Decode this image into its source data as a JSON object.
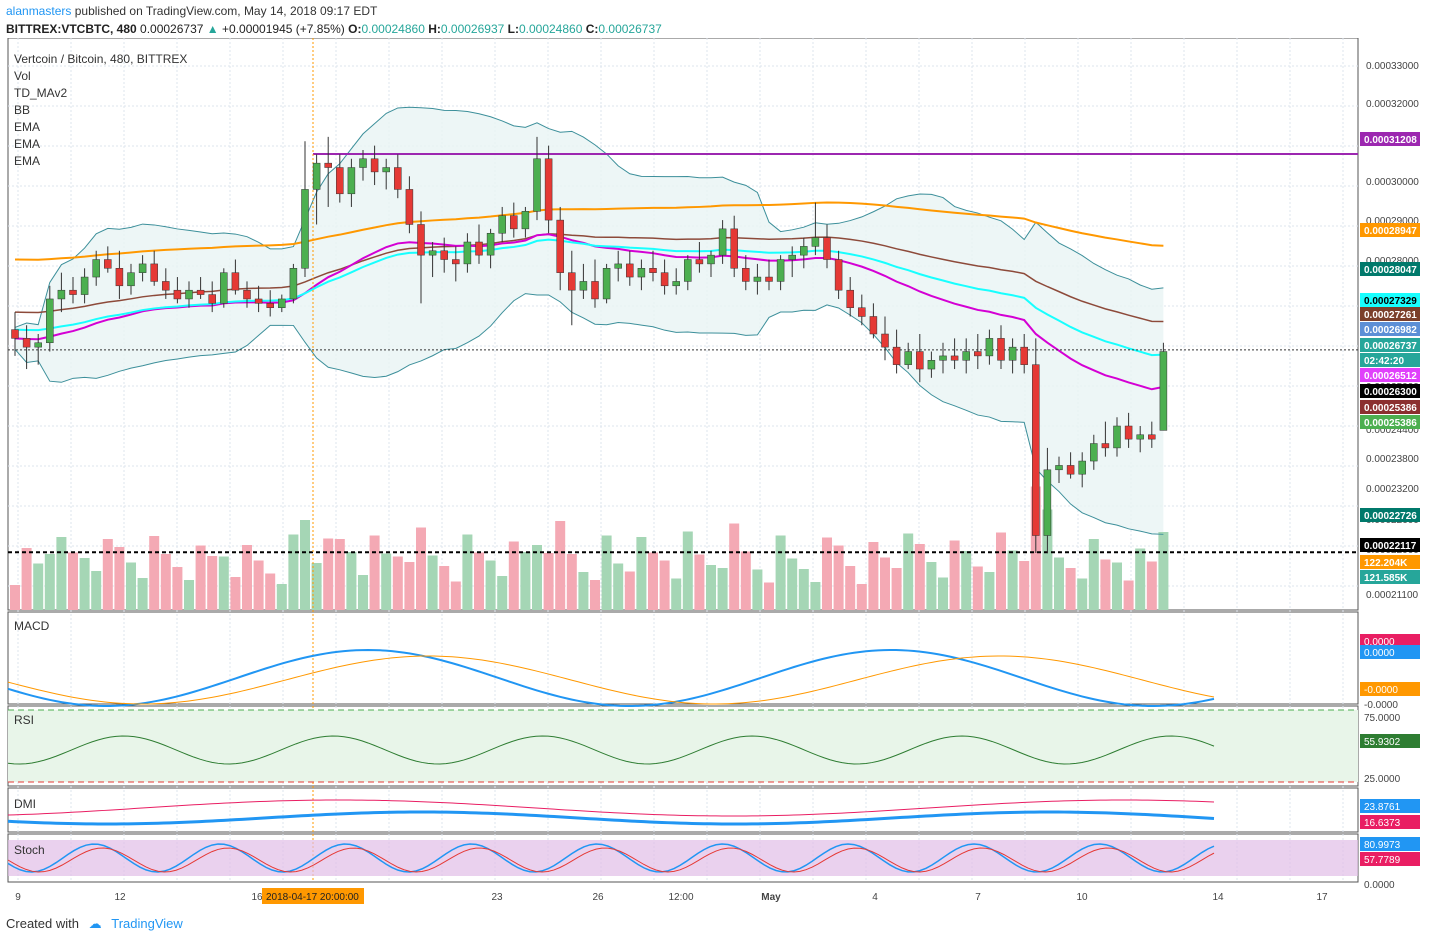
{
  "header": {
    "user": "alanmasters",
    "published": "published on TradingView.com, May 14, 2018 09:17 EDT",
    "symbol": "BITTREX:VTCBTC, 480",
    "last": "0.00026737",
    "change": "+0.00001945 (+7.85%)",
    "o_label": "O:",
    "o": "0.00024860",
    "h_label": "H:",
    "h": "0.00026937",
    "l_label": "L:",
    "l": "0.00024860",
    "c_label": "C:",
    "c": "0.00026737"
  },
  "legend": {
    "title": "Vertcoin / Bitcoin, 480, BITTREX",
    "items": [
      "Vol",
      "TD_MAv2",
      "BB",
      "EMA",
      "EMA",
      "EMA"
    ]
  },
  "panes": {
    "macd": "MACD",
    "rsi": "RSI",
    "dmi": "DMI",
    "stoch": "Stoch"
  },
  "chart_data": {
    "type": "candlestick",
    "price_ticks": [
      "0.00033000",
      "0.00032000",
      "0.00031000",
      "0.00030000",
      "0.00029000",
      "0.00028000",
      "0.00027000",
      "0.00026000",
      "0.00025000",
      "0.00024400",
      "0.00023800",
      "0.00023200",
      "0.00022600",
      "0.00022000",
      "0.00021100"
    ],
    "price_badges": [
      {
        "label": "0.00031208",
        "color": "#9c27b0",
        "text": "#ffffff"
      },
      {
        "label": "0.00028947",
        "color": "#ff9800",
        "text": "#ffffff"
      },
      {
        "label": "0.00028047",
        "color": "#00796b",
        "text": "#ffffff"
      },
      {
        "label": "0.00027329",
        "color": "#18ffff",
        "text": "#000000"
      },
      {
        "label": "0.00027261",
        "color": "#7b3f2b",
        "text": "#ffffff"
      },
      {
        "label": "0.00026982",
        "color": "#5c8fd6",
        "text": "#ffffff"
      },
      {
        "label": "0.00026737",
        "color": "#26a69a",
        "text": "#ffffff"
      },
      {
        "label": "02:42:20",
        "color": "#26a69a",
        "text": "#ffffff"
      },
      {
        "label": "0.00026512",
        "color": "#e040fb",
        "text": "#ffffff"
      },
      {
        "label": "0.00026300",
        "color": "#000000",
        "text": "#ffffff"
      },
      {
        "label": "0.00025386",
        "color": "#8b2f2f",
        "text": "#ffffff"
      },
      {
        "label": "0.00025386",
        "color": "#4caf50",
        "text": "#ffffff"
      },
      {
        "label": "0.00022726",
        "color": "#00796b",
        "text": "#ffffff"
      },
      {
        "label": "0.00022117",
        "color": "#000000",
        "text": "#ffffff"
      },
      {
        "label": "122.204K",
        "color": "#ff9800",
        "text": "#ffffff"
      },
      {
        "label": "121.585K",
        "color": "#26a69a",
        "text": "#ffffff"
      }
    ],
    "x_labels": [
      "9",
      "12",
      "16",
      "2018-04-17 20:00:00",
      "23",
      "26",
      "12:00",
      "May",
      "4",
      "7",
      "10",
      "14",
      "17"
    ],
    "macd": {
      "labels": [
        "0.0000",
        "0.0000",
        "-0.0000",
        "-0.0000"
      ],
      "badge_colors": [
        "#e91e63",
        "#2196f3",
        "#ff9800"
      ]
    },
    "rsi": {
      "labels": [
        "75.0000",
        "55.9302",
        "25.0000"
      ],
      "value": 55.9302
    },
    "dmi": {
      "labels": [
        "23.8761",
        "16.6373"
      ],
      "badge_colors": [
        "#2196f3",
        "#e91e63"
      ]
    },
    "stoch": {
      "labels": [
        "80.9973",
        "57.7789",
        "0.0000"
      ],
      "badge_colors": [
        "#2196f3",
        "#e91e63"
      ]
    },
    "candles": [
      [
        0.000272,
        0.000276,
        0.000266,
        0.00027
      ],
      [
        0.00027,
        0.000273,
        0.000263,
        0.000268
      ],
      [
        0.000268,
        0.000271,
        0.000264,
        0.000269
      ],
      [
        0.000269,
        0.000282,
        0.000267,
        0.000279
      ],
      [
        0.000279,
        0.000285,
        0.000276,
        0.000281
      ],
      [
        0.000281,
        0.000284,
        0.000278,
        0.00028
      ],
      [
        0.00028,
        0.000286,
        0.000278,
        0.000284
      ],
      [
        0.000284,
        0.00029,
        0.000282,
        0.000288
      ],
      [
        0.000288,
        0.000291,
        0.000285,
        0.000286
      ],
      [
        0.000286,
        0.00029,
        0.000279,
        0.000282
      ],
      [
        0.000282,
        0.000287,
        0.00028,
        0.000285
      ],
      [
        0.000285,
        0.000289,
        0.000283,
        0.000287
      ],
      [
        0.000287,
        0.00029,
        0.000282,
        0.000283
      ],
      [
        0.000283,
        0.000286,
        0.000279,
        0.000281
      ],
      [
        0.000281,
        0.000284,
        0.000278,
        0.000279
      ],
      [
        0.000279,
        0.000283,
        0.000277,
        0.000281
      ],
      [
        0.000281,
        0.000284,
        0.000279,
        0.00028
      ],
      [
        0.00028,
        0.000283,
        0.000276,
        0.000278
      ],
      [
        0.000278,
        0.000286,
        0.000277,
        0.000285
      ],
      [
        0.000285,
        0.000288,
        0.00028,
        0.000281
      ],
      [
        0.000281,
        0.000283,
        0.000277,
        0.000279
      ],
      [
        0.000279,
        0.000282,
        0.000276,
        0.000278
      ],
      [
        0.000278,
        0.000281,
        0.000275,
        0.000277
      ],
      [
        0.000277,
        0.00028,
        0.000276,
        0.000279
      ],
      [
        0.000279,
        0.000287,
        0.000278,
        0.000286
      ],
      [
        0.000286,
        0.000315,
        0.000284,
        0.000304
      ],
      [
        0.000304,
        0.000312,
        0.000296,
        0.00031
      ],
      [
        0.00031,
        0.000316,
        0.0003,
        0.000309
      ],
      [
        0.000309,
        0.000312,
        0.000301,
        0.000303
      ],
      [
        0.000303,
        0.000311,
        0.0003,
        0.000309
      ],
      [
        0.000309,
        0.000313,
        0.000306,
        0.000311
      ],
      [
        0.000311,
        0.000314,
        0.000305,
        0.000308
      ],
      [
        0.000308,
        0.000311,
        0.000304,
        0.000309
      ],
      [
        0.000309,
        0.000312,
        0.000302,
        0.000304
      ],
      [
        0.000304,
        0.000307,
        0.000294,
        0.000296
      ],
      [
        0.000296,
        0.000299,
        0.000278,
        0.000289
      ],
      [
        0.000289,
        0.000292,
        0.000284,
        0.00029
      ],
      [
        0.00029,
        0.000293,
        0.000285,
        0.000288
      ],
      [
        0.000288,
        0.000291,
        0.000283,
        0.000287
      ],
      [
        0.000287,
        0.000294,
        0.000285,
        0.000292
      ],
      [
        0.000292,
        0.000296,
        0.000287,
        0.000289
      ],
      [
        0.000289,
        0.000295,
        0.000286,
        0.000294
      ],
      [
        0.000294,
        0.0003,
        0.000292,
        0.000298
      ],
      [
        0.000298,
        0.000301,
        0.000293,
        0.000295
      ],
      [
        0.000295,
        0.0003,
        0.000293,
        0.000299
      ],
      [
        0.000299,
        0.000316,
        0.000297,
        0.000311
      ],
      [
        0.000311,
        0.000314,
        0.000294,
        0.000297
      ],
      [
        0.000297,
        0.0003,
        0.000281,
        0.000285
      ],
      [
        0.000285,
        0.00029,
        0.000273,
        0.000281
      ],
      [
        0.000281,
        0.000287,
        0.000279,
        0.000283
      ],
      [
        0.000283,
        0.000288,
        0.000277,
        0.000279
      ],
      [
        0.000279,
        0.000287,
        0.000278,
        0.000286
      ],
      [
        0.000286,
        0.00029,
        0.000283,
        0.000287
      ],
      [
        0.000287,
        0.00029,
        0.000282,
        0.000284
      ],
      [
        0.000284,
        0.000288,
        0.000281,
        0.000286
      ],
      [
        0.000286,
        0.00029,
        0.000283,
        0.000285
      ],
      [
        0.000285,
        0.000288,
        0.00028,
        0.000282
      ],
      [
        0.000282,
        0.000286,
        0.00028,
        0.000283
      ],
      [
        0.000283,
        0.000289,
        0.000281,
        0.000288
      ],
      [
        0.000288,
        0.000292,
        0.000285,
        0.000287
      ],
      [
        0.000287,
        0.00029,
        0.000284,
        0.000289
      ],
      [
        0.000289,
        0.000297,
        0.000287,
        0.000295
      ],
      [
        0.000295,
        0.000298,
        0.000284,
        0.000286
      ],
      [
        0.000286,
        0.000289,
        0.000281,
        0.000283
      ],
      [
        0.000283,
        0.000287,
        0.00028,
        0.000284
      ],
      [
        0.000284,
        0.000288,
        0.000281,
        0.000283
      ],
      [
        0.000283,
        0.000289,
        0.000281,
        0.000288
      ],
      [
        0.000288,
        0.000291,
        0.000284,
        0.000289
      ],
      [
        0.000289,
        0.000293,
        0.000286,
        0.000291
      ],
      [
        0.000291,
        0.000301,
        0.000289,
        0.000293
      ],
      [
        0.000293,
        0.000296,
        0.000286,
        0.000288
      ],
      [
        0.000288,
        0.00029,
        0.000279,
        0.000281
      ],
      [
        0.000281,
        0.000284,
        0.000275,
        0.000277
      ],
      [
        0.000277,
        0.00028,
        0.000273,
        0.000275
      ],
      [
        0.000275,
        0.000278,
        0.00027,
        0.000271
      ],
      [
        0.000271,
        0.000275,
        0.000265,
        0.000268
      ],
      [
        0.000268,
        0.000272,
        0.000262,
        0.000264
      ],
      [
        0.000264,
        0.000269,
        0.000263,
        0.000267
      ],
      [
        0.000267,
        0.000271,
        0.00026,
        0.000263
      ],
      [
        0.000263,
        0.000267,
        0.000261,
        0.000265
      ],
      [
        0.000265,
        0.000269,
        0.000262,
        0.000266
      ],
      [
        0.000266,
        0.00027,
        0.000263,
        0.000265
      ],
      [
        0.000265,
        0.00027,
        0.000262,
        0.000267
      ],
      [
        0.000267,
        0.000271,
        0.000263,
        0.000266
      ],
      [
        0.000266,
        0.000272,
        0.000264,
        0.00027
      ],
      [
        0.00027,
        0.000273,
        0.000263,
        0.000265
      ],
      [
        0.000265,
        0.00027,
        0.000262,
        0.000268
      ],
      [
        0.000268,
        0.000271,
        0.000262,
        0.000264
      ],
      [
        0.000264,
        0.00027,
        0.000221,
        0.000225
      ],
      [
        0.000225,
        0.000245,
        0.000221,
        0.00024
      ],
      [
        0.00024,
        0.000243,
        0.000237,
        0.000241
      ],
      [
        0.000241,
        0.000244,
        0.000238,
        0.000239
      ],
      [
        0.000239,
        0.000244,
        0.000236,
        0.000242
      ],
      [
        0.000242,
        0.000248,
        0.00024,
        0.000246
      ],
      [
        0.000246,
        0.000251,
        0.000243,
        0.000245
      ],
      [
        0.000245,
        0.000252,
        0.000243,
        0.00025
      ],
      [
        0.00025,
        0.000253,
        0.000245,
        0.000247
      ],
      [
        0.000247,
        0.00025,
        0.000244,
        0.000248
      ],
      [
        0.000248,
        0.000251,
        0.000245,
        0.000247
      ],
      [
        0.000249,
        0.000269,
        0.000249,
        0.000267
      ]
    ]
  },
  "footer": {
    "created_with": "Created with",
    "brand": "TradingView"
  },
  "colors": {
    "up": "#4caf50",
    "down": "#e53935",
    "up_vol": "#a5d6b5",
    "down_vol": "#f4a9b4",
    "resistance": "#9c27b0",
    "ema_orange": "#ff9800",
    "ema_brown": "#8d4a3a",
    "ema_magenta": "#d400d4",
    "ema_cyan": "#18ffff",
    "bb": "#3c8f9a",
    "bb_fill": "#e8f4f4"
  }
}
